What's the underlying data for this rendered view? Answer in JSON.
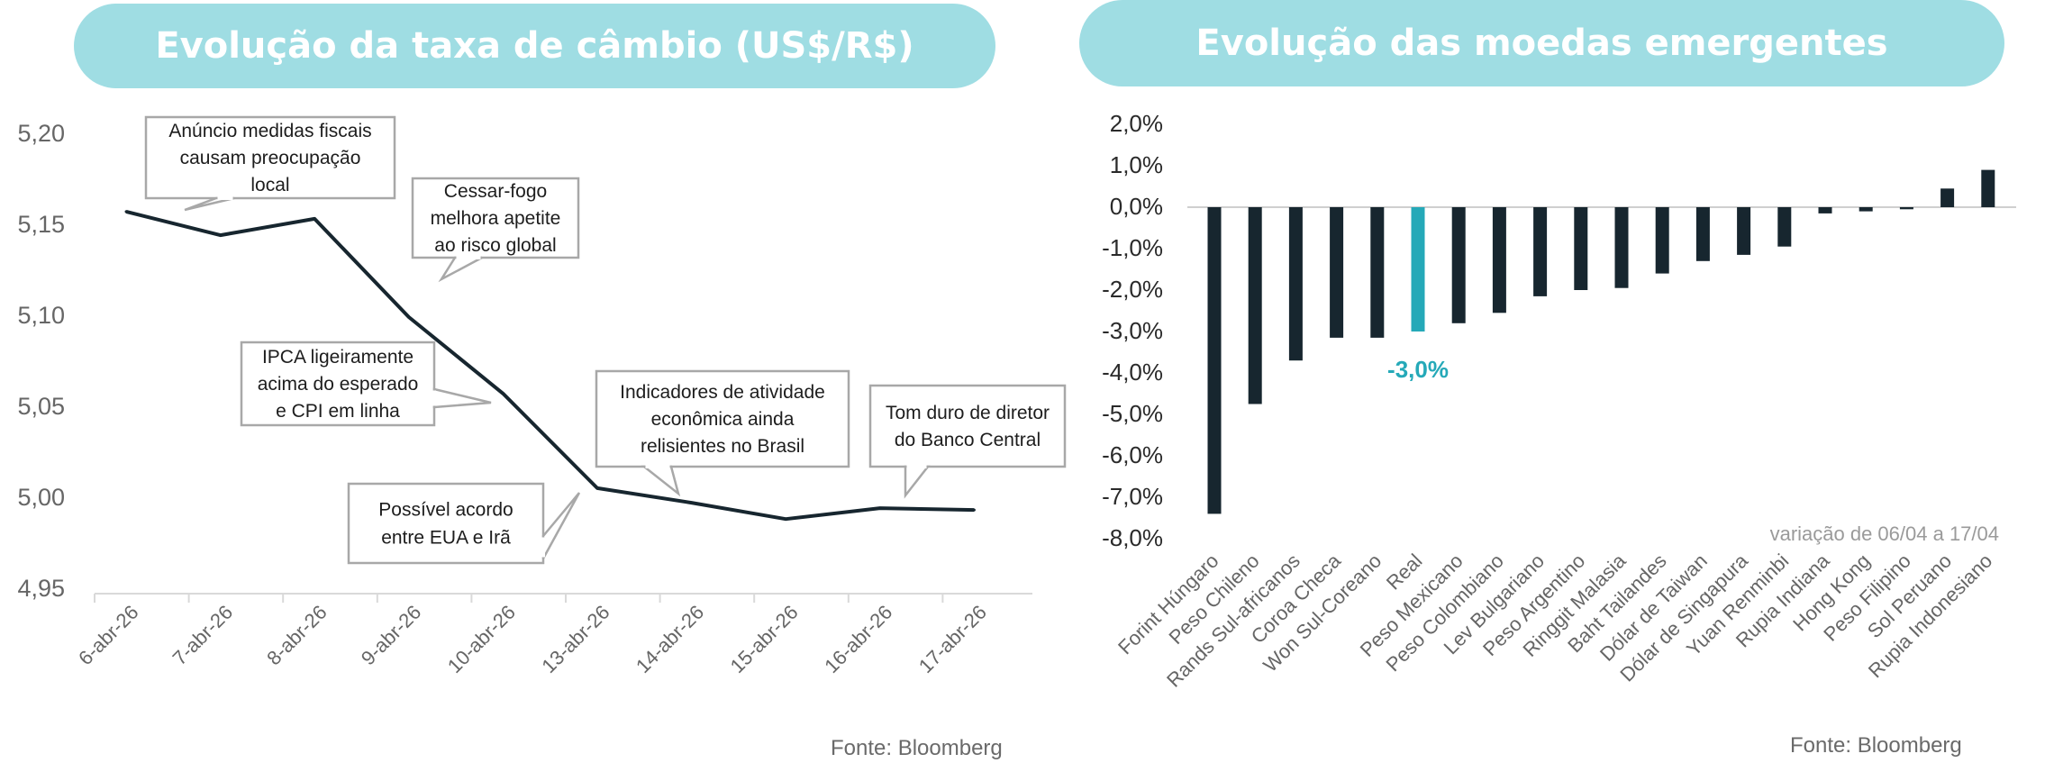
{
  "left": {
    "title": "Evolução da taxa de câmbio (US$/R$)",
    "source": "Fonte: Bloomberg"
  },
  "right": {
    "title": "Evolução das moedas emergentes",
    "source": "Fonte: Bloomberg"
  },
  "colors": {
    "banner": "#9fdde3",
    "line": "#17262f",
    "bar": "#17262f",
    "highlight": "#25a9b8",
    "callout_border": "#a8a8a8",
    "axis_text": "#666666"
  },
  "chart_data": [
    {
      "type": "line",
      "x": [
        "6-abr-26",
        "7-abr-26",
        "8-abr-26",
        "9-abr-26",
        "10-abr-26",
        "13-abr-26",
        "14-abr-26",
        "15-abr-26",
        "16-abr-26",
        "17-abr-26"
      ],
      "series": [
        {
          "values": [
            5.157,
            5.144,
            5.153,
            5.099,
            5.057,
            5.005,
            4.997,
            4.988,
            4.994,
            4.993
          ]
        }
      ],
      "ylim": [
        4.95,
        5.2
      ],
      "yticks": [
        "5,20",
        "5,15",
        "5,10",
        "5,05",
        "5,00",
        "4,95"
      ],
      "annotations": [
        {
          "text": "Anúncio medidas fiscais causam preocupação local",
          "lines": [
            "Anúncio medidas fiscais",
            "causam preocupação",
            "local"
          ]
        },
        {
          "text": "Cessar-fogo melhora apetite ao risco global",
          "lines": [
            "Cessar-fogo",
            "melhora apetite",
            "ao risco global"
          ]
        },
        {
          "text": "IPCA ligeiramente acima do esperado e CPI em linha",
          "lines": [
            "IPCA ligeiramente",
            "acima do esperado",
            "e CPI em linha"
          ]
        },
        {
          "text": "Indicadores de atividade econômica ainda relisientes no Brasil",
          "lines": [
            "Indicadores de atividade",
            "econômica ainda",
            "relisientes no Brasil"
          ]
        },
        {
          "text": "Possível acordo entre EUA e Irã",
          "lines": [
            "Possível acordo",
            "entre EUA e Irã"
          ]
        },
        {
          "text": "Tom duro de diretor do Banco Central",
          "lines": [
            "Tom duro de diretor",
            "do Banco Central"
          ]
        }
      ]
    },
    {
      "type": "bar",
      "categories": [
        "Forint Húngaro",
        "Peso Chileno",
        "Rands Sul-africanos",
        "Coroa Checa",
        "Won Sul-Coreano",
        "Real",
        "Peso Mexicano",
        "Peso Colombiano",
        "Lev Bulgariano",
        "Peso Argentino",
        "Ringgit Malasia",
        "Baht Tailandes",
        "Dólar de Taiwan",
        "Dólar de Singapura",
        "Yuan Renminbi",
        "Rupia Indiana",
        "Hong Kong",
        "Peso Filipino",
        "Sol Peruano",
        "Rupia Indonesiano"
      ],
      "values": [
        -7.4,
        -4.75,
        -3.7,
        -3.15,
        -3.15,
        -3.0,
        -2.8,
        -2.55,
        -2.15,
        -2.0,
        -1.95,
        -1.6,
        -1.3,
        -1.15,
        -0.95,
        -0.15,
        -0.1,
        -0.05,
        0.45,
        0.9
      ],
      "ylim": [
        -8.0,
        2.0
      ],
      "yticks": [
        "2,0%",
        "1,0%",
        "0,0%",
        "-1,0%",
        "-2,0%",
        "-3,0%",
        "-4,0%",
        "-5,0%",
        "-6,0%",
        "-7,0%",
        "-8,0%"
      ],
      "highlight_category": "Real",
      "highlight_label": "-3,0%",
      "note": "variação de 06/04 a 17/04"
    }
  ]
}
